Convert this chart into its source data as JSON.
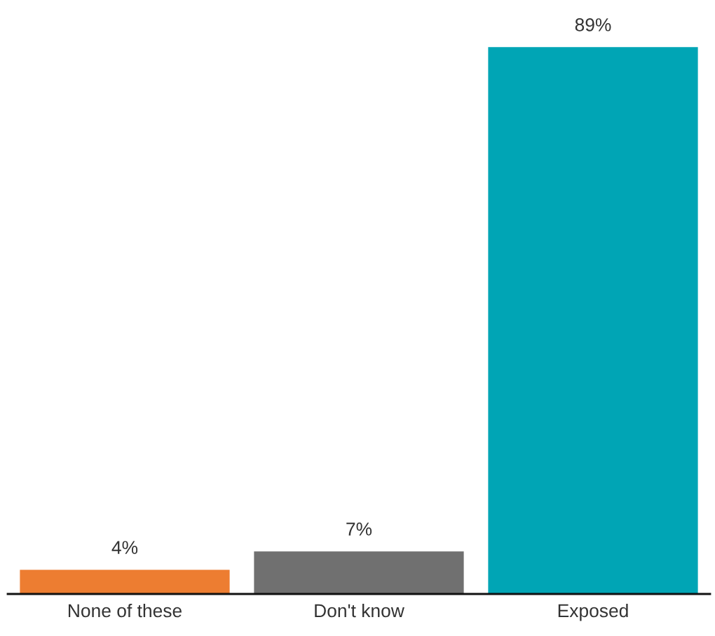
{
  "chart_data": {
    "type": "bar",
    "categories": [
      "None of these",
      "Don't know",
      "Exposed"
    ],
    "values": [
      4,
      7,
      89
    ],
    "colors": [
      "#ed7d31",
      "#707070",
      "#00a5b5"
    ],
    "value_labels": [
      "4%",
      "7%",
      "89%"
    ],
    "grid": false,
    "legend": false
  }
}
